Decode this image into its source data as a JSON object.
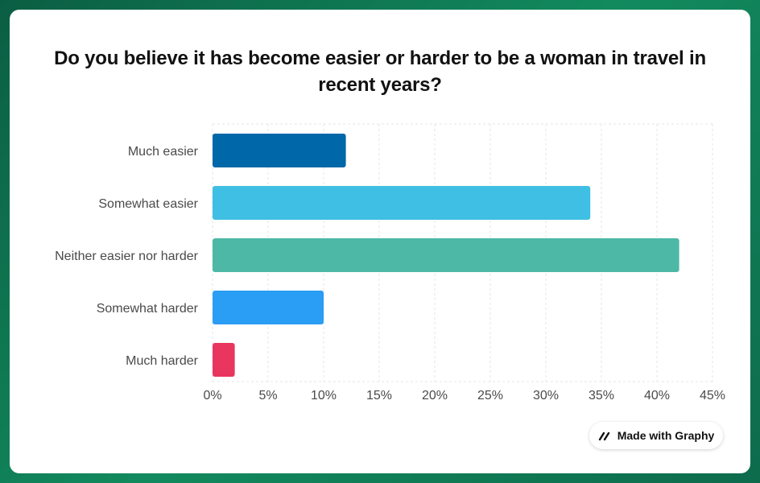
{
  "chart_data": {
    "type": "bar",
    "orientation": "horizontal",
    "title": "Do you believe it has become easier or harder to be a woman in travel in recent years?",
    "categories": [
      "Much easier",
      "Somewhat easier",
      "Neither easier nor harder",
      "Somewhat harder",
      "Much harder"
    ],
    "values": [
      12,
      34,
      42,
      10,
      2
    ],
    "colors": [
      "#0067a8",
      "#3fbfe3",
      "#4db8a6",
      "#2a9df4",
      "#e8365f"
    ],
    "xlim": [
      0,
      45
    ],
    "xticks": [
      0,
      5,
      10,
      15,
      20,
      25,
      30,
      35,
      40,
      45
    ],
    "tick_suffix": "%",
    "grid": true
  },
  "badge": {
    "label": "Made with Graphy"
  }
}
